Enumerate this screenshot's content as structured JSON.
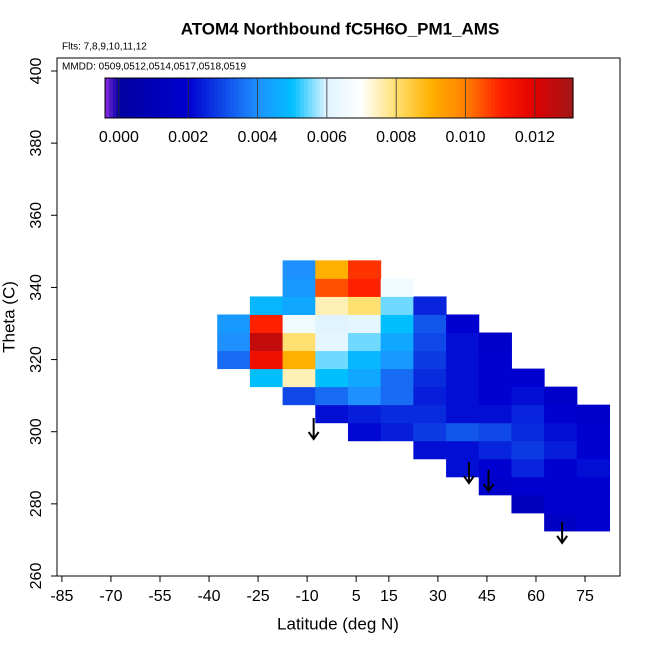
{
  "chart_data": {
    "type": "heatmap",
    "title": "ATOM4 Northbound fC5H6O_PM1_AMS",
    "subtitle": "Flts: 7,8,9,10,11,12",
    "annotation": "MMDD: 0509,0512,0514,0517,0518,0519",
    "xlabel": "Latitude (deg N)",
    "ylabel": "Theta (C)",
    "xlim": [
      -86.5,
      85.7
    ],
    "ylim": [
      260,
      403.6
    ],
    "xticks": [
      -85,
      -70,
      -55,
      -40,
      -25,
      -10,
      5,
      15,
      30,
      45,
      60,
      75
    ],
    "yticks": [
      260,
      280,
      300,
      320,
      340,
      360,
      380,
      400
    ],
    "x": [
      -32.5,
      -22.5,
      -12.5,
      -2.5,
      7.5,
      17.5,
      27.5,
      37.5,
      47.5,
      57.5,
      67.5,
      77.5
    ],
    "y": [
      275,
      280,
      285,
      290,
      295,
      300,
      305,
      310,
      315,
      320,
      325,
      330,
      335,
      340,
      345
    ],
    "z": [
      [
        null,
        null,
        null,
        null,
        null,
        null,
        null,
        null,
        null,
        null,
        0.0015,
        0.002
      ],
      [
        null,
        null,
        null,
        null,
        null,
        null,
        null,
        null,
        null,
        0.0012,
        0.002,
        0.002
      ],
      [
        null,
        null,
        null,
        null,
        null,
        null,
        null,
        null,
        0.0018,
        0.002,
        0.002,
        0.002
      ],
      [
        null,
        null,
        null,
        null,
        null,
        null,
        null,
        0.0022,
        0.002,
        0.0025,
        0.002,
        0.0022
      ],
      [
        null,
        null,
        null,
        null,
        null,
        null,
        0.0022,
        0.0022,
        0.0025,
        0.0028,
        0.0024,
        0.002
      ],
      [
        null,
        null,
        null,
        null,
        0.0021,
        0.0024,
        0.0028,
        0.0032,
        0.003,
        0.0026,
        0.0022,
        0.002
      ],
      [
        null,
        null,
        null,
        0.0022,
        0.0024,
        0.0026,
        0.0026,
        0.0022,
        0.0022,
        0.0025,
        0.002,
        0.0018
      ],
      [
        null,
        null,
        0.003,
        0.0035,
        0.004,
        0.0035,
        0.0024,
        0.0022,
        0.002,
        0.0022,
        0.0018,
        null
      ],
      [
        null,
        0.005,
        0.0075,
        0.005,
        0.0045,
        0.0035,
        0.0026,
        0.0022,
        0.002,
        0.002,
        null,
        null
      ],
      [
        0.0035,
        0.0115,
        0.009,
        0.0055,
        0.0048,
        0.0042,
        0.0028,
        0.0022,
        0.002,
        null,
        null,
        null
      ],
      [
        0.004,
        0.0125,
        0.008,
        0.0062,
        0.0055,
        0.0045,
        0.003,
        0.0022,
        0.0018,
        null,
        null,
        null
      ],
      [
        0.0042,
        0.011,
        0.0065,
        0.006,
        0.0062,
        0.005,
        0.0032,
        0.002,
        null,
        null,
        null,
        null
      ],
      [
        null,
        0.0048,
        0.0045,
        0.0075,
        0.008,
        0.0055,
        0.0025,
        null,
        null,
        null,
        null,
        null
      ],
      [
        null,
        null,
        0.0042,
        0.0105,
        0.011,
        0.0065,
        null,
        null,
        null,
        null,
        null,
        null
      ],
      [
        null,
        null,
        0.004,
        0.009,
        0.0108,
        null,
        null,
        null,
        null,
        null,
        null,
        null
      ]
    ],
    "zlim": [
      -0.0004,
      0.0131
    ],
    "zticks": [
      {
        "value": 0,
        "label": "0.000"
      },
      {
        "value": 0.002,
        "label": "0.002"
      },
      {
        "value": 0.004,
        "label": "0.004"
      },
      {
        "value": 0.006,
        "label": "0.006"
      },
      {
        "value": 0.008,
        "label": "0.008"
      },
      {
        "value": 0.01,
        "label": "0.010"
      },
      {
        "value": 0.012,
        "label": "0.012"
      }
    ],
    "colorscale": [
      [
        -0.0004,
        "#8a2be2"
      ],
      [
        0.0,
        "#0000a0"
      ],
      [
        0.002,
        "#0000d0"
      ],
      [
        0.004,
        "#1e90ff"
      ],
      [
        0.005,
        "#00bfff"
      ],
      [
        0.006,
        "#e0f4ff"
      ],
      [
        0.007,
        "#ffffff"
      ],
      [
        0.008,
        "#ffe070"
      ],
      [
        0.009,
        "#ffb000"
      ],
      [
        0.01,
        "#ff8000"
      ],
      [
        0.011,
        "#ff2000"
      ],
      [
        0.012,
        "#e00000"
      ],
      [
        0.0131,
        "#a01818"
      ]
    ],
    "arrows": {
      "x": [
        -8,
        39.5,
        45.5,
        68
      ],
      "y": [
        303.8,
        291.6,
        289.4,
        275
      ]
    }
  }
}
